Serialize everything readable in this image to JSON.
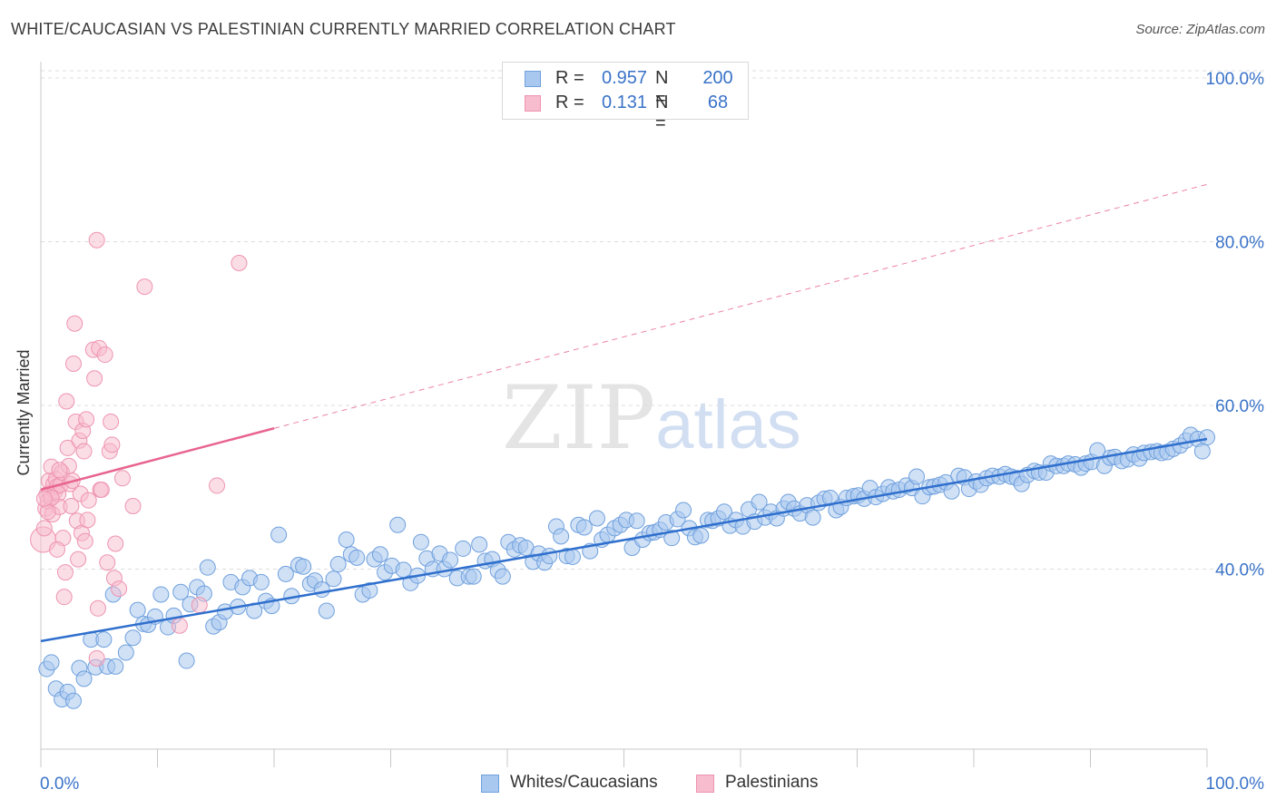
{
  "header": {
    "title": "WHITE/CAUCASIAN VS PALESTINIAN CURRENTLY MARRIED CORRELATION CHART",
    "source": "Source: ZipAtlas.com"
  },
  "legend_top": {
    "rows": [
      {
        "r_label": "R =",
        "r_value": "0.957",
        "n_label": "N =",
        "n_value": "200"
      },
      {
        "r_label": "R =",
        "r_value": "0.131",
        "n_label": "N =",
        "n_value": "68"
      }
    ]
  },
  "legend_bottom": [
    "Whites/Caucasians",
    "Palestinians"
  ],
  "watermark": {
    "zip": "ZIP",
    "atlas": "atlas"
  },
  "colors": {
    "blue_fill": "#a9c8ef",
    "blue_stroke": "#6fa0dd",
    "blue_line": "#2f6fcd",
    "pink_fill": "#f7bccd",
    "pink_stroke": "#ee94b1",
    "pink_line": "#e8648f",
    "axis_text": "#3a73c8",
    "grid": "#dcdcdc"
  },
  "chart_data": {
    "type": "scatter",
    "title": "WHITE/CAUCASIAN VS PALESTINIAN CURRENTLY MARRIED CORRELATION CHART",
    "xlabel": "",
    "ylabel": "Currently Married",
    "xlim": [
      0,
      100
    ],
    "ylim": [
      18,
      102
    ],
    "x_tick_labels": [
      "0.0%",
      "100.0%"
    ],
    "y_ticks": [
      40,
      60,
      80,
      100
    ],
    "y_tick_labels": [
      "40.0%",
      "60.0%",
      "80.0%",
      "100.0%"
    ],
    "grid": "horizontal dashed",
    "legend": "bottom-center",
    "series": [
      {
        "name": "Whites/Caucasians",
        "r": 0.957,
        "n": 200,
        "trend": {
          "x": [
            0,
            100
          ],
          "y": [
            31.2,
            55.9
          ],
          "style": "solid"
        },
        "points": [
          [
            0.5,
            27.8
          ],
          [
            0.9,
            28.6
          ],
          [
            1.3,
            25.4
          ],
          [
            1.8,
            24.1
          ],
          [
            2.3,
            25.0
          ],
          [
            2.8,
            23.9
          ],
          [
            3.3,
            27.9
          ],
          [
            3.7,
            26.6
          ],
          [
            4.3,
            31.4
          ],
          [
            4.7,
            28.0
          ],
          [
            5.4,
            31.4
          ],
          [
            5.7,
            28.1
          ],
          [
            6.4,
            28.1
          ],
          [
            6.2,
            36.9
          ],
          [
            7.3,
            29.8
          ],
          [
            7.9,
            31.6
          ],
          [
            8.3,
            35.0
          ],
          [
            8.8,
            33.3
          ],
          [
            9.2,
            33.2
          ],
          [
            9.8,
            34.2
          ],
          [
            10.3,
            36.9
          ],
          [
            10.9,
            32.9
          ],
          [
            11.4,
            34.3
          ],
          [
            12.0,
            37.2
          ],
          [
            12.5,
            28.8
          ],
          [
            12.8,
            35.7
          ],
          [
            13.4,
            37.8
          ],
          [
            14.0,
            37.0
          ],
          [
            14.3,
            40.2
          ],
          [
            14.8,
            33.0
          ],
          [
            15.3,
            33.5
          ],
          [
            15.8,
            34.8
          ],
          [
            16.3,
            38.4
          ],
          [
            16.9,
            35.4
          ],
          [
            17.3,
            37.8
          ],
          [
            17.9,
            38.9
          ],
          [
            18.3,
            34.9
          ],
          [
            18.9,
            38.4
          ],
          [
            19.3,
            36.1
          ],
          [
            19.8,
            35.5
          ],
          [
            20.4,
            44.2
          ],
          [
            21.0,
            39.4
          ],
          [
            21.5,
            36.7
          ],
          [
            22.1,
            40.5
          ],
          [
            22.5,
            40.3
          ],
          [
            23.1,
            38.2
          ],
          [
            23.5,
            38.6
          ],
          [
            24.1,
            37.5
          ],
          [
            24.5,
            34.9
          ],
          [
            25.1,
            38.8
          ],
          [
            25.5,
            40.6
          ],
          [
            26.2,
            43.6
          ],
          [
            26.6,
            41.8
          ],
          [
            27.1,
            41.4
          ],
          [
            27.6,
            36.9
          ],
          [
            28.2,
            37.4
          ],
          [
            28.6,
            41.2
          ],
          [
            29.1,
            41.8
          ],
          [
            29.5,
            39.6
          ],
          [
            30.1,
            40.4
          ],
          [
            30.6,
            45.4
          ],
          [
            31.1,
            39.9
          ],
          [
            31.7,
            38.3
          ],
          [
            32.3,
            39.2
          ],
          [
            32.6,
            43.3
          ],
          [
            33.1,
            41.3
          ],
          [
            33.6,
            40.0
          ],
          [
            34.2,
            41.9
          ],
          [
            34.6,
            40.0
          ],
          [
            35.1,
            41.1
          ],
          [
            35.7,
            38.9
          ],
          [
            36.2,
            42.5
          ],
          [
            36.7,
            39.1
          ],
          [
            37.1,
            39.1
          ],
          [
            37.6,
            43.0
          ],
          [
            38.1,
            41.0
          ],
          [
            38.7,
            41.2
          ],
          [
            39.2,
            39.8
          ],
          [
            39.6,
            39.1
          ],
          [
            40.1,
            43.3
          ],
          [
            40.6,
            42.4
          ],
          [
            41.1,
            42.9
          ],
          [
            41.6,
            42.6
          ],
          [
            42.2,
            40.9
          ],
          [
            42.7,
            41.9
          ],
          [
            43.2,
            40.8
          ],
          [
            43.6,
            41.6
          ],
          [
            44.2,
            45.2
          ],
          [
            44.6,
            44.0
          ],
          [
            45.1,
            41.6
          ],
          [
            45.6,
            41.5
          ],
          [
            46.1,
            45.4
          ],
          [
            46.6,
            45.1
          ],
          [
            47.1,
            42.2
          ],
          [
            47.7,
            46.2
          ],
          [
            48.1,
            43.6
          ],
          [
            48.6,
            44.2
          ],
          [
            49.2,
            45.0
          ],
          [
            49.7,
            45.4
          ],
          [
            50.2,
            46.0
          ],
          [
            50.7,
            42.6
          ],
          [
            51.1,
            45.9
          ],
          [
            51.6,
            43.6
          ],
          [
            52.2,
            44.4
          ],
          [
            52.6,
            44.5
          ],
          [
            53.1,
            44.8
          ],
          [
            53.6,
            45.7
          ],
          [
            54.1,
            43.8
          ],
          [
            54.6,
            46.1
          ],
          [
            55.1,
            47.2
          ],
          [
            55.6,
            45.0
          ],
          [
            56.1,
            43.9
          ],
          [
            56.6,
            44.1
          ],
          [
            57.2,
            46.0
          ],
          [
            57.6,
            45.9
          ],
          [
            58.1,
            46.2
          ],
          [
            58.6,
            47.0
          ],
          [
            59.1,
            45.3
          ],
          [
            59.6,
            46.0
          ],
          [
            60.2,
            45.2
          ],
          [
            60.7,
            47.3
          ],
          [
            61.2,
            45.8
          ],
          [
            61.6,
            48.2
          ],
          [
            62.1,
            46.3
          ],
          [
            62.6,
            47.0
          ],
          [
            63.1,
            46.2
          ],
          [
            63.7,
            47.4
          ],
          [
            64.1,
            48.2
          ],
          [
            64.6,
            47.4
          ],
          [
            65.1,
            46.8
          ],
          [
            65.7,
            47.8
          ],
          [
            66.2,
            46.3
          ],
          [
            66.7,
            48.1
          ],
          [
            67.2,
            48.6
          ],
          [
            67.7,
            48.7
          ],
          [
            68.2,
            47.2
          ],
          [
            68.6,
            47.6
          ],
          [
            69.1,
            48.7
          ],
          [
            69.7,
            48.9
          ],
          [
            70.1,
            49.0
          ],
          [
            70.6,
            48.6
          ],
          [
            71.1,
            49.9
          ],
          [
            71.6,
            48.8
          ],
          [
            72.2,
            49.2
          ],
          [
            72.7,
            50.0
          ],
          [
            73.1,
            49.5
          ],
          [
            73.6,
            49.7
          ],
          [
            74.2,
            50.2
          ],
          [
            74.7,
            49.9
          ],
          [
            75.1,
            51.3
          ],
          [
            75.6,
            48.9
          ],
          [
            76.2,
            50.0
          ],
          [
            76.6,
            50.1
          ],
          [
            77.1,
            50.3
          ],
          [
            77.6,
            50.6
          ],
          [
            78.1,
            49.5
          ],
          [
            78.7,
            51.4
          ],
          [
            79.2,
            51.2
          ],
          [
            79.6,
            49.8
          ],
          [
            80.2,
            50.7
          ],
          [
            80.6,
            50.3
          ],
          [
            81.1,
            51.1
          ],
          [
            81.6,
            51.4
          ],
          [
            82.2,
            51.3
          ],
          [
            82.7,
            51.6
          ],
          [
            83.2,
            51.3
          ],
          [
            83.7,
            51.1
          ],
          [
            84.1,
            50.4
          ],
          [
            84.6,
            51.5
          ],
          [
            85.2,
            52.0
          ],
          [
            85.6,
            51.8
          ],
          [
            86.2,
            51.8
          ],
          [
            86.6,
            52.9
          ],
          [
            87.1,
            52.6
          ],
          [
            87.7,
            52.6
          ],
          [
            88.1,
            52.9
          ],
          [
            88.7,
            52.8
          ],
          [
            89.2,
            52.4
          ],
          [
            89.6,
            52.9
          ],
          [
            90.1,
            53.1
          ],
          [
            90.6,
            54.5
          ],
          [
            91.2,
            52.6
          ],
          [
            91.7,
            53.6
          ],
          [
            92.1,
            53.7
          ],
          [
            92.7,
            53.2
          ],
          [
            93.2,
            53.4
          ],
          [
            93.7,
            54.0
          ],
          [
            94.2,
            53.5
          ],
          [
            94.6,
            54.2
          ],
          [
            95.2,
            54.3
          ],
          [
            95.7,
            54.4
          ],
          [
            96.1,
            54.2
          ],
          [
            96.6,
            54.3
          ],
          [
            97.1,
            54.7
          ],
          [
            97.7,
            55.1
          ],
          [
            98.2,
            55.7
          ],
          [
            98.6,
            56.4
          ],
          [
            99.2,
            55.9
          ],
          [
            99.6,
            54.4
          ],
          [
            100.0,
            56.1
          ]
        ]
      },
      {
        "name": "Palestinians",
        "r": 0.131,
        "n": 68,
        "trend": {
          "x": [
            0,
            20
          ],
          "y": [
            49.7,
            57.2
          ],
          "style": "solid",
          "extension": {
            "x": [
              20,
              100
            ],
            "y": [
              57.2,
              87.0
            ],
            "style": "dashed"
          }
        },
        "points": [
          [
            0.2,
            43.6
          ],
          [
            0.3,
            45.0
          ],
          [
            0.4,
            47.4
          ],
          [
            0.5,
            49.1
          ],
          [
            0.6,
            48.3
          ],
          [
            0.7,
            50.8
          ],
          [
            0.8,
            49.3
          ],
          [
            0.9,
            52.5
          ],
          [
            1.0,
            46.7
          ],
          [
            1.1,
            50.4
          ],
          [
            1.2,
            49.5
          ],
          [
            1.3,
            51.0
          ],
          [
            1.4,
            50.1
          ],
          [
            1.5,
            49.2
          ],
          [
            1.6,
            47.6
          ],
          [
            1.7,
            50.3
          ],
          [
            1.8,
            51.8
          ],
          [
            1.9,
            43.8
          ],
          [
            2.0,
            36.6
          ],
          [
            2.1,
            39.6
          ],
          [
            2.2,
            60.5
          ],
          [
            2.3,
            54.8
          ],
          [
            2.4,
            52.6
          ],
          [
            2.5,
            50.4
          ],
          [
            2.6,
            47.7
          ],
          [
            2.8,
            65.1
          ],
          [
            2.9,
            70.0
          ],
          [
            3.0,
            58.0
          ],
          [
            3.1,
            45.9
          ],
          [
            3.2,
            41.2
          ],
          [
            3.3,
            55.7
          ],
          [
            3.4,
            49.2
          ],
          [
            3.5,
            44.4
          ],
          [
            3.6,
            56.9
          ],
          [
            3.7,
            54.4
          ],
          [
            3.8,
            43.4
          ],
          [
            3.9,
            58.3
          ],
          [
            4.0,
            46.0
          ],
          [
            4.1,
            48.4
          ],
          [
            4.5,
            66.8
          ],
          [
            4.6,
            63.3
          ],
          [
            4.8,
            29.1
          ],
          [
            4.9,
            35.2
          ],
          [
            5.0,
            67.0
          ],
          [
            5.1,
            49.7
          ],
          [
            5.2,
            49.7
          ],
          [
            5.5,
            66.2
          ],
          [
            5.7,
            40.8
          ],
          [
            5.9,
            54.4
          ],
          [
            6.0,
            58.0
          ],
          [
            6.1,
            55.2
          ],
          [
            6.3,
            38.9
          ],
          [
            6.4,
            43.1
          ],
          [
            6.7,
            37.6
          ],
          [
            7.0,
            51.1
          ],
          [
            7.9,
            47.7
          ],
          [
            8.9,
            74.5
          ],
          [
            11.9,
            33.1
          ],
          [
            13.6,
            35.6
          ],
          [
            15.1,
            50.2
          ],
          [
            17.0,
            77.4
          ],
          [
            4.8,
            80.2
          ],
          [
            1.4,
            42.4
          ],
          [
            0.9,
            48.7
          ],
          [
            2.7,
            50.8
          ],
          [
            1.6,
            52.1
          ],
          [
            0.6,
            47.0
          ],
          [
            0.3,
            48.6
          ]
        ]
      }
    ]
  }
}
